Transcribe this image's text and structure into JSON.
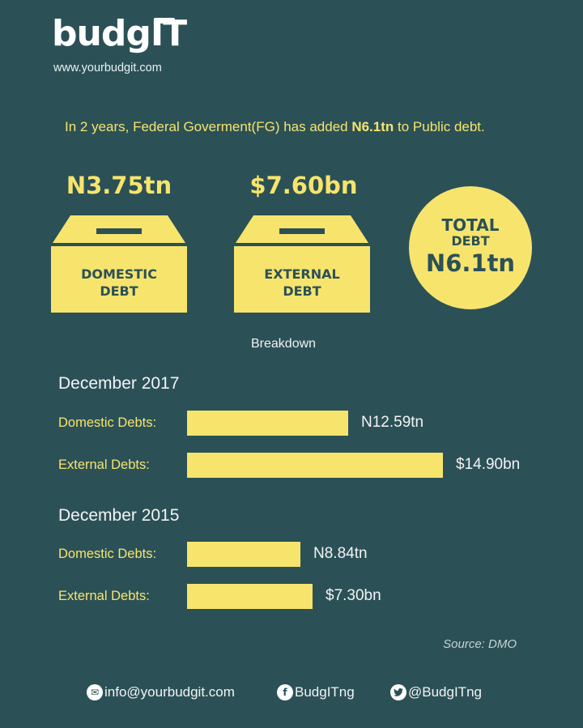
{
  "brand": {
    "logo_text": "budgIT",
    "url": "www.yourbudgit.com"
  },
  "intro": {
    "text_before": "In 2 years, Federal Goverment(FG) has added ",
    "highlight": "N6.1tn",
    "text_after": " to Public debt."
  },
  "summary": {
    "domestic": {
      "value": "N3.75tn",
      "label_line1": "DOMESTIC",
      "label_line2": "DEBT"
    },
    "external": {
      "value": "$7.60bn",
      "label_line1": "EXTERNAL",
      "label_line2": "DEBT"
    },
    "total": {
      "line1": "TOTAL",
      "line2": "DEBT",
      "value": "N6.1tn"
    }
  },
  "breakdown_label": "Breakdown",
  "chart_data": {
    "type": "bar",
    "orientation": "horizontal",
    "title": "Breakdown",
    "groups": [
      {
        "period": "December 2017",
        "rows": [
          {
            "label": "Domestic Debts:",
            "value": 12.59,
            "unit": "trillion naira",
            "display": "N12.59tn"
          },
          {
            "label": "External Debts:",
            "value": 14.9,
            "unit": "billion dollars",
            "display": "$14.90bn"
          }
        ]
      },
      {
        "period": "December 2015",
        "rows": [
          {
            "label": "Domestic Debts:",
            "value": 8.84,
            "unit": "trillion naira",
            "display": "N8.84tn"
          },
          {
            "label": "External Debts:",
            "value": 7.3,
            "unit": "billion dollars",
            "display": "$7.30bn"
          }
        ]
      }
    ],
    "bar_color": "#f7e46d"
  },
  "source": "Source: DMO",
  "footer": {
    "email": "info@yourbudgit.com",
    "facebook": "BudgITng",
    "twitter": "@BudgITng"
  },
  "colors": {
    "background": "#2b5157",
    "accent": "#f7e46d"
  }
}
